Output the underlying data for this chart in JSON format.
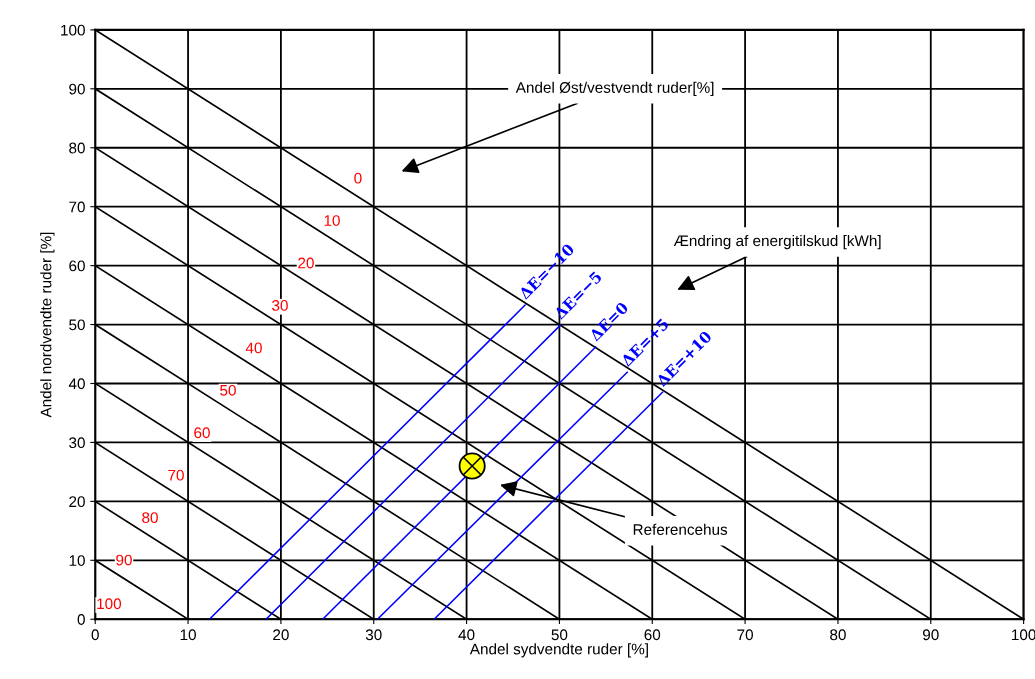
{
  "chart_data": {
    "type": "line",
    "xlabel": "Andel sydvendte ruder [%]",
    "ylabel": "Andel nordvendte ruder [%]",
    "xlim": [
      0,
      100
    ],
    "ylim": [
      0,
      100
    ],
    "xticks": [
      0,
      10,
      20,
      30,
      40,
      50,
      60,
      70,
      80,
      90,
      100
    ],
    "yticks": [
      0,
      10,
      20,
      30,
      40,
      50,
      60,
      70,
      80,
      90,
      100
    ],
    "grid": true,
    "series": [
      {
        "name": "0",
        "x": [
          0,
          100
        ],
        "values": [
          100,
          0
        ],
        "color": "#000000"
      },
      {
        "name": "10",
        "x": [
          0,
          90
        ],
        "values": [
          90,
          0
        ],
        "color": "#000000"
      },
      {
        "name": "20",
        "x": [
          0,
          80
        ],
        "values": [
          80,
          0
        ],
        "color": "#000000"
      },
      {
        "name": "30",
        "x": [
          0,
          70
        ],
        "values": [
          70,
          0
        ],
        "color": "#000000"
      },
      {
        "name": "40",
        "x": [
          0,
          60
        ],
        "values": [
          60,
          0
        ],
        "color": "#000000"
      },
      {
        "name": "50",
        "x": [
          0,
          50
        ],
        "values": [
          50,
          0
        ],
        "color": "#000000"
      },
      {
        "name": "60",
        "x": [
          0,
          40
        ],
        "values": [
          40,
          0
        ],
        "color": "#000000"
      },
      {
        "name": "70",
        "x": [
          0,
          30
        ],
        "values": [
          30,
          0
        ],
        "color": "#000000"
      },
      {
        "name": "80",
        "x": [
          0,
          20
        ],
        "values": [
          20,
          0
        ],
        "color": "#000000"
      },
      {
        "name": "90",
        "x": [
          0,
          10
        ],
        "values": [
          10,
          0
        ],
        "color": "#000000"
      },
      {
        "name": "ΔE=−10",
        "x": [
          12.3,
          46.3
        ],
        "values": [
          0,
          53.3
        ],
        "color": "#0000ff"
      },
      {
        "name": "ΔE=−5",
        "x": [
          18.4,
          50.1
        ],
        "values": [
          0,
          49.9
        ],
        "color": "#0000ff"
      },
      {
        "name": "ΔE=0",
        "x": [
          24.5,
          53.9
        ],
        "values": [
          0,
          46.2
        ],
        "color": "#0000ff"
      },
      {
        "name": "ΔE=+5",
        "x": [
          30.4,
          57.3
        ],
        "values": [
          0,
          41.9
        ],
        "color": "#0000ff"
      },
      {
        "name": "ΔE=+10",
        "x": [
          36.5,
          61.1
        ],
        "values": [
          0,
          38.5
        ],
        "color": "#0000ff"
      },
      {
        "type": "scatter",
        "x": [
          40.6
        ],
        "values": [
          26.0
        ],
        "color": "#ffff00",
        "marker": "circle"
      }
    ],
    "annotations": [
      "Andel Øst/vestvendt ruder[%]",
      "Ændring af energitilskud [kWh]",
      "Referencehus",
      "100"
    ]
  }
}
